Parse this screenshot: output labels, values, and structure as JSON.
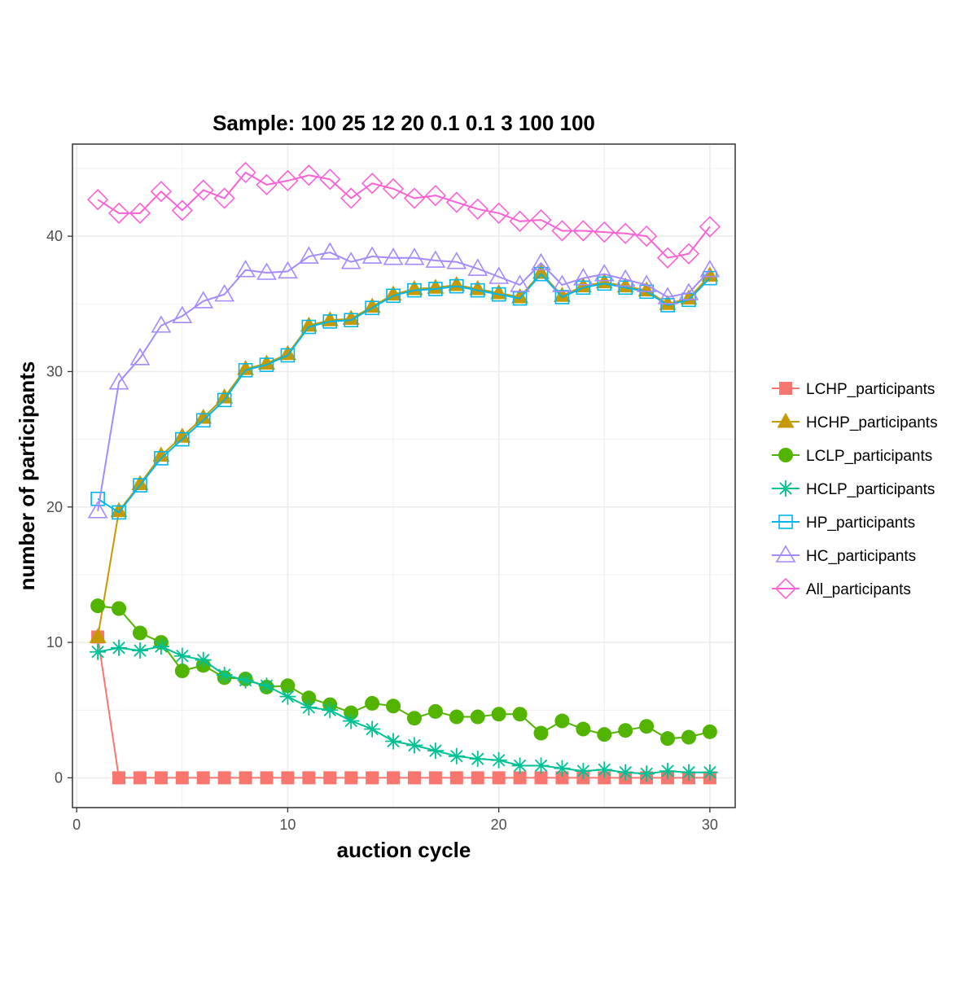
{
  "chart_data": {
    "type": "line",
    "title": "Sample: 100 25 12 20 0.1 0.1 3 100 100",
    "xlabel": "auction cycle",
    "ylabel": "number of participants",
    "xlim": [
      -0.2,
      31.2
    ],
    "ylim": [
      -2.2,
      46.8
    ],
    "x_ticks": [
      0,
      10,
      20,
      30
    ],
    "y_ticks": [
      0,
      10,
      20,
      30,
      40
    ],
    "grid": true,
    "legend_position": "right",
    "x": [
      1,
      2,
      3,
      4,
      5,
      6,
      7,
      8,
      9,
      10,
      11,
      12,
      13,
      14,
      15,
      16,
      17,
      18,
      19,
      20,
      21,
      22,
      23,
      24,
      25,
      26,
      27,
      28,
      29,
      30
    ],
    "series": [
      {
        "name": "LCHP_participants",
        "color": "#F8766D",
        "marker": "square-filled",
        "values": [
          10.4,
          0,
          0,
          0,
          0,
          0,
          0,
          0,
          0,
          0,
          0,
          0,
          0,
          0,
          0,
          0,
          0,
          0,
          0,
          0,
          0,
          0,
          0,
          0,
          0,
          0,
          0,
          0,
          0,
          0
        ]
      },
      {
        "name": "HCHP_participants",
        "color": "#C49A00",
        "marker": "triangle-filled",
        "values": [
          10.4,
          19.7,
          21.7,
          23.8,
          25.2,
          26.6,
          28.1,
          30.2,
          30.6,
          31.3,
          33.4,
          33.8,
          33.9,
          34.8,
          35.7,
          36.1,
          36.2,
          36.4,
          36.1,
          35.8,
          35.5,
          37.3,
          35.6,
          36.3,
          36.6,
          36.3,
          36.0,
          35.0,
          35.4,
          37.1
        ]
      },
      {
        "name": "LCLP_participants",
        "color": "#53B400",
        "marker": "circle-filled",
        "values": [
          12.7,
          12.5,
          10.7,
          10.0,
          7.9,
          8.3,
          7.4,
          7.3,
          6.7,
          6.8,
          5.9,
          5.4,
          4.8,
          5.5,
          5.3,
          4.4,
          4.9,
          4.5,
          4.5,
          4.7,
          4.7,
          3.3,
          4.2,
          3.6,
          3.2,
          3.5,
          3.8,
          2.9,
          3.0,
          3.4
        ]
      },
      {
        "name": "HCLP_participants",
        "color": "#00C094",
        "marker": "asterisk",
        "values": [
          9.3,
          9.6,
          9.4,
          9.7,
          9.0,
          8.7,
          7.6,
          7.2,
          6.8,
          6.0,
          5.2,
          5.0,
          4.2,
          3.6,
          2.7,
          2.4,
          2.0,
          1.6,
          1.4,
          1.3,
          0.9,
          0.9,
          0.7,
          0.5,
          0.6,
          0.4,
          0.3,
          0.5,
          0.4,
          0.4
        ]
      },
      {
        "name": "HP_participants",
        "color": "#00B6EB",
        "marker": "square-open",
        "values": [
          20.6,
          19.6,
          21.6,
          23.6,
          25.0,
          26.4,
          27.9,
          30.1,
          30.5,
          31.2,
          33.3,
          33.7,
          33.8,
          34.7,
          35.6,
          36.0,
          36.1,
          36.3,
          36.0,
          35.7,
          35.4,
          37.2,
          35.5,
          36.2,
          36.5,
          36.2,
          35.9,
          34.9,
          35.3,
          36.9
        ]
      },
      {
        "name": "HC_participants",
        "color": "#A58AFF",
        "marker": "triangle-open",
        "values": [
          19.7,
          29.2,
          31.0,
          33.4,
          34.1,
          35.2,
          35.7,
          37.5,
          37.3,
          37.4,
          38.5,
          38.8,
          38.1,
          38.5,
          38.4,
          38.4,
          38.2,
          38.1,
          37.6,
          37.0,
          36.4,
          38.0,
          36.4,
          36.9,
          37.2,
          36.8,
          36.4,
          35.5,
          35.8,
          37.5
        ]
      },
      {
        "name": "All_participants",
        "color": "#FB61D7",
        "marker": "diamond-open",
        "values": [
          42.7,
          41.7,
          41.7,
          43.3,
          41.9,
          43.4,
          42.8,
          44.7,
          43.8,
          44.1,
          44.5,
          44.2,
          42.8,
          43.9,
          43.5,
          42.8,
          43.0,
          42.5,
          42.0,
          41.7,
          41.1,
          41.2,
          40.4,
          40.4,
          40.3,
          40.2,
          40.0,
          38.4,
          38.7,
          40.7
        ]
      }
    ]
  }
}
